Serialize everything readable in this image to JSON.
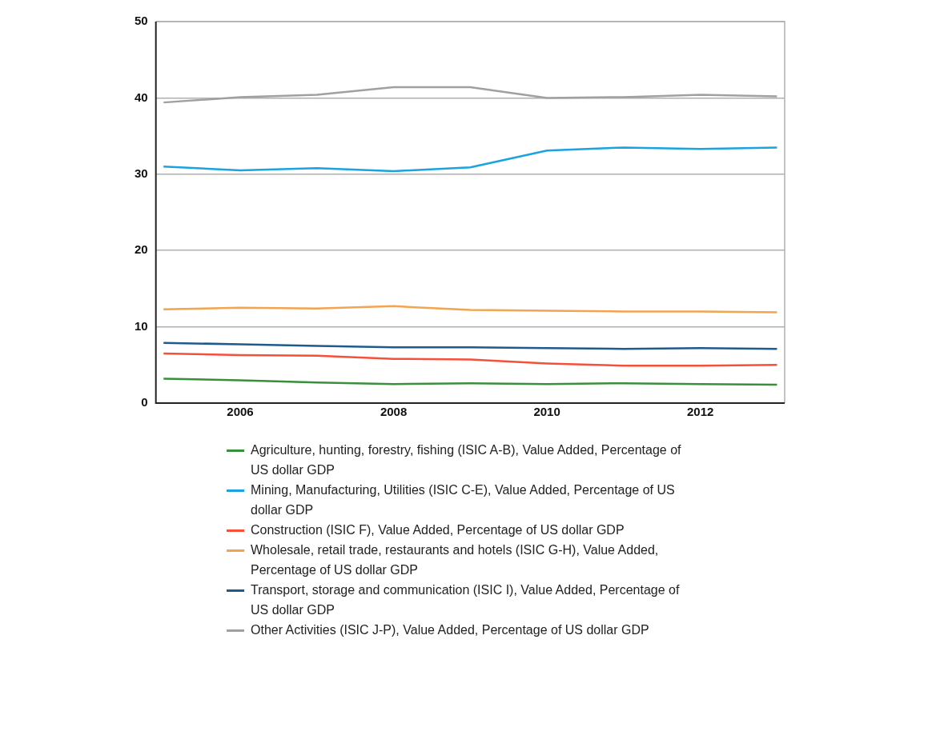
{
  "chart_data": {
    "type": "line",
    "x": [
      2005,
      2006,
      2007,
      2008,
      2009,
      2010,
      2011,
      2012,
      2013
    ],
    "xlim": [
      2004.9,
      2013.1
    ],
    "xticks": [
      2006,
      2008,
      2010,
      2012
    ],
    "ylim": [
      0,
      50
    ],
    "yticks": [
      0,
      10,
      20,
      30,
      40,
      50
    ],
    "grid": "y",
    "legend": "bottom",
    "marker": "none",
    "line_style": "solid",
    "series": [
      {
        "name": "Agriculture, hunting, forestry, fishing (ISIC A-B), Value Added, Percentage of US dollar GDP",
        "color": "#3a8f3a",
        "values": [
          3.2,
          3.0,
          2.7,
          2.5,
          2.6,
          2.5,
          2.6,
          2.5,
          2.4
        ]
      },
      {
        "name": "Mining, Manufacturing, Utilities (ISIC C-E), Value Added, Percentage of US dollar GDP",
        "color": "#1aa3e0",
        "values": [
          31.0,
          30.5,
          30.8,
          30.4,
          30.9,
          33.1,
          33.5,
          33.3,
          33.5
        ]
      },
      {
        "name": "Construction (ISIC F), Value Added, Percentage of US dollar GDP",
        "color": "#f5503a",
        "values": [
          6.5,
          6.3,
          6.2,
          5.8,
          5.7,
          5.2,
          4.9,
          4.9,
          5.0
        ]
      },
      {
        "name": "Wholesale, retail trade, restaurants and hotels (ISIC G-H), Value Added, Percentage of US dollar GDP",
        "color": "#f2a451",
        "values": [
          12.3,
          12.5,
          12.4,
          12.7,
          12.2,
          12.1,
          12.0,
          12.0,
          11.9
        ]
      },
      {
        "name": "Transport, storage and communication (ISIC I), Value Added, Percentage of US dollar GDP",
        "color": "#1f5a8c",
        "values": [
          7.9,
          7.7,
          7.5,
          7.3,
          7.3,
          7.2,
          7.1,
          7.2,
          7.1
        ]
      },
      {
        "name": "Other Activities (ISIC J-P), Value Added, Percentage of US dollar GDP",
        "color": "#a0a0a0",
        "values": [
          39.4,
          40.1,
          40.4,
          41.4,
          41.4,
          40.0,
          40.1,
          40.4,
          40.2
        ]
      }
    ]
  }
}
